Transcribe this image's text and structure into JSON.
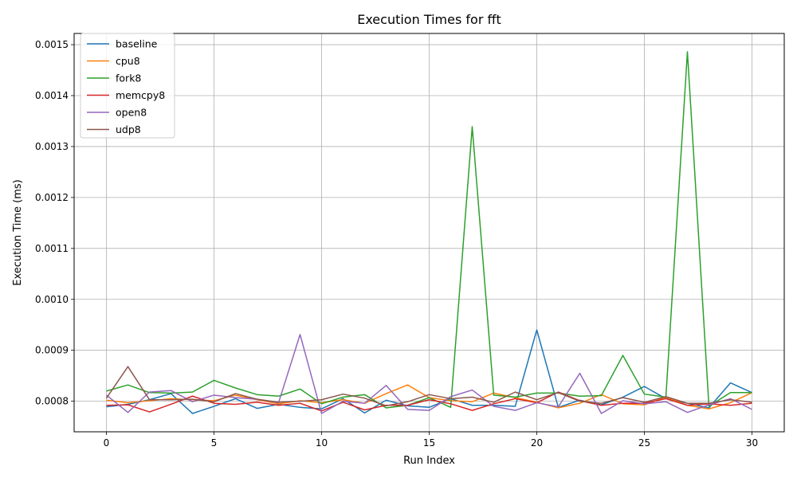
{
  "chart_data": {
    "type": "line",
    "title": "Execution Times for fft",
    "xlabel": "Run Index",
    "ylabel": "Execution Time (ms)",
    "xlim": [
      -1.5,
      31.5
    ],
    "ylim": [
      0.00074,
      0.001522
    ],
    "xticks": [
      0,
      5,
      10,
      15,
      20,
      25,
      30
    ],
    "yticks": [
      0.0008,
      0.0009,
      0.001,
      0.0011,
      0.0012,
      0.0013,
      0.0014,
      0.0015
    ],
    "ytick_labels": [
      "0.0008",
      "0.0009",
      "0.0010",
      "0.0011",
      "0.0012",
      "0.0013",
      "0.0014",
      "0.0015"
    ],
    "grid": true,
    "legend_position": "top-left",
    "x": [
      0,
      1,
      2,
      3,
      4,
      5,
      6,
      7,
      8,
      9,
      10,
      11,
      12,
      13,
      14,
      15,
      16,
      17,
      18,
      19,
      20,
      21,
      22,
      23,
      24,
      25,
      26,
      27,
      28,
      29,
      30
    ],
    "series": [
      {
        "name": "baseline",
        "color": "#1f77b4",
        "values": [
          0.000789,
          0.000794,
          0.000803,
          0.000815,
          0.000776,
          0.00079,
          0.000805,
          0.000786,
          0.000794,
          0.000788,
          0.000785,
          0.000805,
          0.000777,
          0.000802,
          0.000791,
          0.000788,
          0.000805,
          0.000792,
          0.000792,
          0.00079,
          0.00094,
          0.000788,
          0.000802,
          0.000793,
          0.000808,
          0.000829,
          0.000805,
          0.000796,
          0.000787,
          0.000836,
          0.000817
        ]
      },
      {
        "name": "cpu8",
        "color": "#ff7f0e",
        "values": [
          0.000802,
          0.000797,
          0.000801,
          0.000805,
          0.000803,
          0.000801,
          0.000812,
          0.000803,
          0.000795,
          0.000801,
          0.000797,
          0.000803,
          0.000796,
          0.000815,
          0.000832,
          0.000807,
          0.000801,
          0.000799,
          0.000816,
          0.000807,
          0.000798,
          0.000787,
          0.000796,
          0.000813,
          0.000795,
          0.000793,
          0.000808,
          0.000792,
          0.000785,
          0.000797,
          0.000817
        ]
      },
      {
        "name": "fork8",
        "color": "#2ca02c",
        "values": [
          0.00082,
          0.000832,
          0.000817,
          0.000816,
          0.000818,
          0.000841,
          0.000826,
          0.000813,
          0.00081,
          0.000824,
          0.000795,
          0.000808,
          0.000813,
          0.000787,
          0.000792,
          0.000807,
          0.000788,
          0.001339,
          0.000812,
          0.000808,
          0.000816,
          0.000816,
          0.00081,
          0.000811,
          0.00089,
          0.000814,
          0.000808,
          0.001486,
          0.00079,
          0.000817,
          0.000817
        ]
      },
      {
        "name": "memcpy8",
        "color": "#d62728",
        "values": [
          0.000792,
          0.000793,
          0.000779,
          0.000794,
          0.00081,
          0.000796,
          0.000794,
          0.000798,
          0.000792,
          0.000796,
          0.000781,
          0.000798,
          0.000783,
          0.000792,
          0.000792,
          0.000803,
          0.000795,
          0.000782,
          0.000795,
          0.000805,
          0.000797,
          0.000818,
          0.000801,
          0.000792,
          0.000796,
          0.000796,
          0.000805,
          0.000792,
          0.000795,
          0.000792,
          0.000796
        ]
      },
      {
        "name": "open8",
        "color": "#9467bd",
        "values": [
          0.000812,
          0.000778,
          0.000818,
          0.000821,
          0.000799,
          0.000812,
          0.000807,
          0.000804,
          0.000797,
          0.000931,
          0.000776,
          0.0008,
          0.000796,
          0.000831,
          0.000784,
          0.000782,
          0.000809,
          0.000822,
          0.00079,
          0.000782,
          0.000797,
          0.000789,
          0.000855,
          0.000776,
          0.000801,
          0.000795,
          0.000799,
          0.000778,
          0.000793,
          0.000805,
          0.000784
        ]
      },
      {
        "name": "udp8",
        "color": "#8c564b",
        "values": [
          0.000806,
          0.000868,
          0.000803,
          0.000803,
          0.000804,
          0.000799,
          0.000815,
          0.000804,
          0.000798,
          0.0008,
          0.000803,
          0.000814,
          0.000806,
          0.000791,
          0.000799,
          0.000813,
          0.000805,
          0.000808,
          0.000798,
          0.000818,
          0.000803,
          0.000817,
          0.0008,
          0.000796,
          0.000807,
          0.000798,
          0.000809,
          0.000796,
          0.000796,
          0.000803,
          0.000798
        ]
      }
    ]
  }
}
